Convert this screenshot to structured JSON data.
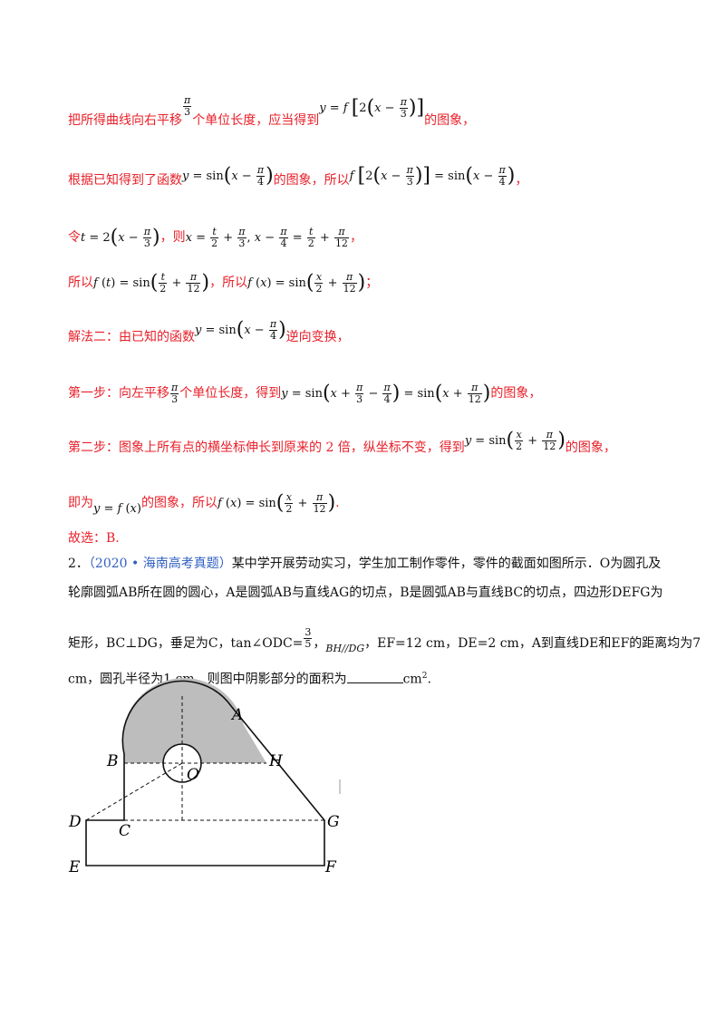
{
  "s1": {
    "pre": "把所得曲线向右平移",
    "mid": "个单位长度，应当得到",
    "post": "的图象，"
  },
  "s2": {
    "pre": "根据已知得到了函数",
    "mid": "的图象，所以",
    "post": "，"
  },
  "s3": {
    "pre": "令",
    "mid": "，则",
    "post": "，"
  },
  "s4": {
    "pre": "所以",
    "mid": "，所以",
    "post": "；"
  },
  "s5": {
    "pre": "解法二：由已知的函数",
    "post": "逆向变换，"
  },
  "s6": {
    "pre": "第一步：向左平移",
    "mid": "个单位长度，得到",
    "post": "的图象，"
  },
  "s7": {
    "pre": "第二步：图象上所有点的横坐标伸长到原来的 2 倍，纵坐标不变，得到",
    "post": "的图象，"
  },
  "s8": {
    "pre": "即为",
    "mid": "的图象，所以",
    "post": "."
  },
  "answer": "故选：B.",
  "q2": {
    "number": "2．",
    "source": "（2020 • 海南高考真题）",
    "l1": "某中学开展劳动实习，学生加工制作零件，零件的截面如图所示．O为圆孔及",
    "l2": "轮廓圆弧AB所在圆的圆心，A是圆弧AB与直线AG的切点，B是圆弧AB与直线BC的切点，四边形DEFG为",
    "l3a": "矩形，BC⊥DG，垂足为C，tan∠ODC=",
    "l3b": "，",
    "l3c": "BH//DG",
    "l3d": "，EF=12 cm，DE=2 cm，A到直线DE和EF的距离均为7",
    "l4a": "cm，圆孔半径为1 cm，则图中阴影部分的面积为",
    "l4b": "cm",
    "l4sup": "2",
    "l4c": "."
  },
  "figure": {
    "labels": {
      "A": "A",
      "B": "B",
      "H": "H",
      "O": "O",
      "D": "D",
      "C": "C",
      "G": "G",
      "E": "E",
      "F": "F"
    },
    "shade_color": "#bdbdbd"
  }
}
